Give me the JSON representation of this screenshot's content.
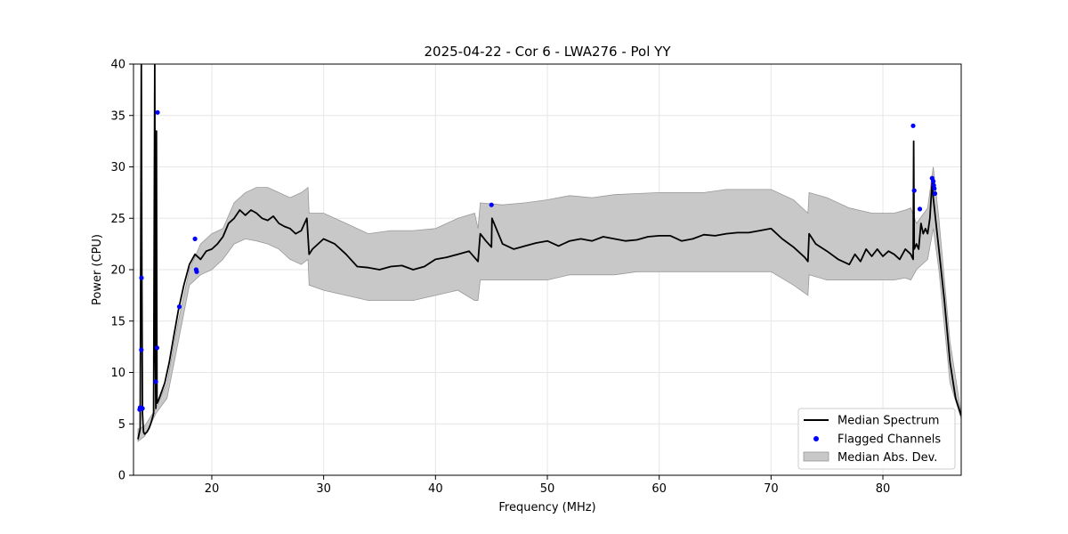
{
  "chart_data": {
    "type": "line",
    "title": "2025-04-22 - Cor 6 - LWA276 - Pol YY",
    "xlabel": "Frequency (MHz)",
    "ylabel": "Power (CPU)",
    "xlim": [
      13.0,
      87.0
    ],
    "ylim": [
      0,
      40
    ],
    "xticks": [
      20,
      30,
      40,
      50,
      60,
      70,
      80
    ],
    "xtick_labels": [
      "20",
      "30",
      "40",
      "50",
      "60",
      "70",
      "80"
    ],
    "yticks": [
      0,
      5,
      10,
      15,
      20,
      25,
      30,
      35,
      40
    ],
    "ytick_labels": [
      "0",
      "5",
      "10",
      "15",
      "20",
      "25",
      "30",
      "35",
      "40"
    ],
    "grid": true,
    "legend_position": "bottom-right",
    "colors": {
      "median": "#000000",
      "flagged": "#0000ff",
      "mad_fill": "#c8c8c8",
      "mad_edge": "#999999"
    },
    "series": [
      {
        "name": "Median Spectrum",
        "kind": "line",
        "x": [
          13.4,
          13.6,
          13.7,
          13.75,
          13.8,
          13.85,
          13.9,
          14.0,
          14.1,
          14.2,
          14.4,
          14.6,
          14.8,
          14.9,
          14.95,
          15.0,
          15.05,
          15.1,
          15.2,
          15.4,
          15.8,
          16.2,
          16.6,
          17.0,
          17.5,
          18.0,
          18.5,
          19.0,
          19.5,
          20.0,
          20.5,
          21.0,
          21.5,
          22.0,
          22.5,
          23.0,
          23.5,
          24.0,
          24.5,
          25.0,
          25.5,
          26.0,
          26.5,
          27.0,
          27.5,
          28.0,
          28.5,
          28.7,
          29.0,
          30.0,
          31.0,
          32.0,
          33.0,
          34.0,
          35.0,
          36.0,
          37.0,
          38.0,
          39.0,
          40.0,
          41.0,
          42.0,
          43.0,
          43.8,
          44.0,
          44.5,
          45.0,
          45.05,
          46.0,
          47.0,
          48.0,
          49.0,
          50.0,
          51.0,
          52.0,
          53.0,
          54.0,
          55.0,
          56.0,
          57.0,
          58.0,
          59.0,
          60.0,
          61.0,
          62.0,
          63.0,
          64.0,
          65.0,
          66.0,
          67.0,
          68.0,
          69.0,
          70.0,
          71.0,
          72.0,
          73.0,
          73.3,
          73.4,
          74.0,
          75.0,
          76.0,
          77.0,
          77.5,
          78.0,
          78.5,
          79.0,
          79.5,
          80.0,
          80.5,
          81.0,
          81.5,
          82.0,
          82.5,
          82.7,
          82.75,
          82.8,
          83.0,
          83.2,
          83.4,
          83.6,
          83.8,
          84.0,
          84.2,
          84.4,
          84.5,
          84.7,
          85.0,
          85.5,
          86.0,
          86.5,
          87.0
        ],
        "y": [
          3.5,
          4.5,
          40.0,
          19.0,
          6.0,
          5.0,
          4.2,
          4.0,
          4.1,
          4.2,
          4.6,
          5.2,
          6.0,
          40.0,
          12.0,
          6.5,
          33.5,
          7.0,
          7.2,
          7.8,
          9.0,
          11.0,
          13.5,
          16.0,
          18.5,
          20.5,
          21.5,
          21.0,
          21.8,
          22.0,
          22.5,
          23.2,
          24.5,
          25.0,
          25.8,
          25.3,
          25.8,
          25.5,
          25.0,
          24.8,
          25.2,
          24.5,
          24.2,
          24.0,
          23.5,
          23.8,
          25.0,
          21.5,
          22.0,
          23.0,
          22.5,
          21.5,
          20.3,
          20.2,
          20.0,
          20.3,
          20.4,
          20.0,
          20.3,
          21.0,
          21.2,
          21.5,
          21.8,
          20.8,
          23.5,
          22.8,
          22.2,
          25.0,
          22.5,
          22.0,
          22.3,
          22.6,
          22.8,
          22.3,
          22.8,
          23.0,
          22.8,
          23.2,
          23.0,
          22.8,
          22.9,
          23.2,
          23.3,
          23.3,
          22.8,
          23.0,
          23.4,
          23.3,
          23.5,
          23.6,
          23.6,
          23.8,
          24.0,
          23.0,
          22.2,
          21.2,
          20.8,
          23.5,
          22.5,
          21.8,
          21.0,
          20.5,
          21.5,
          20.8,
          22.0,
          21.3,
          22.0,
          21.3,
          21.8,
          21.5,
          21.0,
          22.0,
          21.5,
          21.0,
          32.5,
          22.0,
          22.5,
          22.0,
          24.5,
          23.5,
          24.0,
          23.5,
          25.0,
          28.5,
          27.0,
          25.0,
          22.0,
          17.0,
          11.0,
          7.5,
          5.8
        ]
      },
      {
        "name": "Flagged Channels",
        "kind": "scatter",
        "x": [
          13.55,
          13.6,
          13.65,
          13.7,
          13.72,
          13.8,
          15.0,
          15.1,
          15.15,
          17.1,
          18.5,
          18.6,
          18.65,
          45.0,
          82.7,
          82.8,
          83.3,
          84.4,
          84.5,
          84.55,
          84.6,
          84.65
        ],
        "y": [
          6.4,
          6.6,
          6.5,
          12.2,
          19.2,
          6.5,
          9.1,
          12.4,
          35.3,
          16.4,
          23.0,
          20.0,
          19.8,
          26.3,
          34.0,
          27.7,
          25.9,
          28.9,
          28.6,
          28.2,
          27.9,
          27.4
        ]
      },
      {
        "name": "Median Abs. Dev.",
        "kind": "band",
        "x": [
          13.4,
          14.0,
          15.0,
          16.0,
          17.0,
          18.0,
          19.0,
          20.0,
          21.0,
          22.0,
          23.0,
          24.0,
          25.0,
          26.0,
          27.0,
          28.0,
          28.6,
          28.7,
          30.0,
          32.0,
          34.0,
          36.0,
          38.0,
          40.0,
          42.0,
          43.5,
          43.8,
          44.0,
          46.0,
          48.0,
          50.0,
          52.0,
          54.0,
          56.0,
          58.0,
          60.0,
          62.0,
          64.0,
          66.0,
          68.0,
          70.0,
          72.0,
          73.3,
          73.4,
          75.0,
          77.0,
          79.0,
          81.0,
          82.0,
          82.5,
          83.0,
          84.0,
          84.5,
          85.0,
          86.0,
          87.0
        ],
        "upper": [
          4.5,
          4.8,
          6.5,
          9.0,
          15.0,
          20.0,
          22.5,
          23.5,
          24.0,
          26.5,
          27.5,
          28.0,
          28.0,
          27.5,
          27.0,
          27.5,
          28.0,
          25.5,
          25.5,
          24.5,
          23.5,
          23.8,
          23.8,
          24.0,
          25.0,
          25.5,
          24.0,
          26.5,
          26.3,
          26.5,
          26.8,
          27.2,
          27.0,
          27.3,
          27.4,
          27.5,
          27.5,
          27.5,
          27.8,
          27.8,
          27.8,
          26.8,
          25.5,
          27.5,
          27.0,
          26.0,
          25.5,
          25.5,
          25.8,
          26.0,
          24.5,
          26.0,
          30.0,
          25.0,
          13.0,
          6.0
        ],
        "lower": [
          3.3,
          3.8,
          6.0,
          7.5,
          13.0,
          18.5,
          19.5,
          20.0,
          21.0,
          22.5,
          23.0,
          22.8,
          22.5,
          22.0,
          21.0,
          20.5,
          21.0,
          18.5,
          18.0,
          17.5,
          17.0,
          17.0,
          17.0,
          17.5,
          18.0,
          17.0,
          17.0,
          19.0,
          19.0,
          19.0,
          19.0,
          19.5,
          19.5,
          19.5,
          19.8,
          19.8,
          19.8,
          19.8,
          19.8,
          19.8,
          19.8,
          18.5,
          17.5,
          19.5,
          19.0,
          19.0,
          19.0,
          19.0,
          19.2,
          19.0,
          20.0,
          21.0,
          24.0,
          20.0,
          9.0,
          5.5
        ]
      }
    ]
  }
}
